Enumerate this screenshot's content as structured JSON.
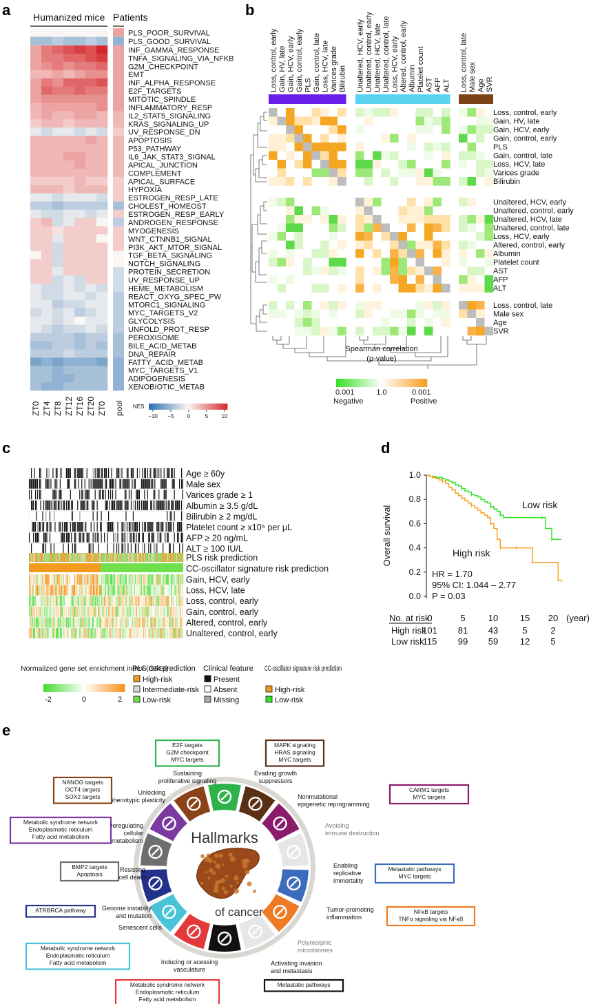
{
  "panels": {
    "a": "a",
    "b": "b",
    "c": "c",
    "d": "d",
    "e": "e"
  },
  "chart_data": [
    {
      "id": "a",
      "type": "heatmap",
      "group_labels": [
        "Humanized mice",
        "Patients"
      ],
      "columns": [
        "ZT0",
        "ZT4",
        "ZT8",
        "ZT12",
        "ZT16",
        "ZT20",
        "ZT0"
      ],
      "patient_column": "pool",
      "top_rows": [
        {
          "name": "PLS_POOR_SURVIVAL",
          "values": [
            0,
            0,
            0,
            0,
            0,
            0,
            0
          ],
          "pool": 4
        },
        {
          "name": "PLS_GOOD_SURVIVAL",
          "values": [
            -4,
            -4,
            -3,
            -4,
            -4,
            -3,
            -4
          ],
          "pool": -5
        }
      ],
      "rows": [
        {
          "name": "INF_GAMMA_RESPONSE",
          "values": [
            4,
            6,
            7,
            8,
            9,
            8,
            10
          ],
          "pool": 4
        },
        {
          "name": "TNFA_SIGNALING_VIA_NFKB",
          "values": [
            4,
            6,
            6,
            7,
            7,
            8,
            9
          ],
          "pool": 4
        },
        {
          "name": "G2M_CHECKPOINT",
          "values": [
            4,
            5,
            6,
            5,
            6,
            6,
            7
          ],
          "pool": 4
        },
        {
          "name": "EMT",
          "values": [
            3,
            3,
            4,
            3,
            4,
            5,
            5
          ],
          "pool": 4
        },
        {
          "name": "INF_ALPHA_RESPONSE",
          "values": [
            4,
            6,
            5,
            7,
            7,
            7,
            8
          ],
          "pool": 4
        },
        {
          "name": "E2F_TARGETS",
          "values": [
            4,
            7,
            6,
            6,
            7,
            6,
            6
          ],
          "pool": 4
        },
        {
          "name": "MITOTIC_SPINDLE",
          "values": [
            4,
            5,
            5,
            5,
            5,
            5,
            5
          ],
          "pool": 4
        },
        {
          "name": "INFLAMMATORY_RESP",
          "values": [
            3,
            4,
            4,
            4,
            4,
            4,
            5
          ],
          "pool": 4
        },
        {
          "name": "IL2_STAT5_SIGNALING",
          "values": [
            3,
            4,
            3,
            3,
            4,
            4,
            3
          ],
          "pool": 3
        },
        {
          "name": "KRAS_SIGNALING_UP",
          "values": [
            2,
            3,
            3,
            2,
            3,
            3,
            3
          ],
          "pool": 3
        },
        {
          "name": "UV_RESPONSE_DN",
          "values": [
            -1,
            -2,
            -1,
            -1,
            -2,
            -1,
            -2
          ],
          "pool": 2
        },
        {
          "name": "APOPTOSIS",
          "values": [
            3,
            3,
            3,
            3,
            3,
            4,
            3
          ],
          "pool": 3
        },
        {
          "name": "P53_PATHWAY",
          "values": [
            3,
            3,
            3,
            3,
            3,
            3,
            3
          ],
          "pool": 3
        },
        {
          "name": "IL6_JAK_STAT3_SIGNAL",
          "values": [
            3,
            3,
            3,
            4,
            4,
            3,
            3
          ],
          "pool": 3
        },
        {
          "name": "APICAL_JUNCTION",
          "values": [
            3,
            3,
            3,
            3,
            4,
            3,
            3
          ],
          "pool": 3
        },
        {
          "name": "COMPLEMENT",
          "values": [
            3,
            3,
            3,
            3,
            3,
            3,
            3
          ],
          "pool": 3
        },
        {
          "name": "APICAL_SURFACE",
          "values": [
            2,
            2,
            2,
            2,
            3,
            2,
            2
          ],
          "pool": 2
        },
        {
          "name": "HYPOXIA",
          "values": [
            3,
            3,
            3,
            2,
            3,
            3,
            3
          ],
          "pool": 2
        },
        {
          "name": "ESTROGEN_RESP_LATE",
          "values": [
            -1,
            -1,
            -2,
            -1,
            -1,
            -1,
            -2
          ],
          "pool": 2
        },
        {
          "name": "CHOLEST_HOMEOST",
          "values": [
            -3,
            -3,
            -4,
            -3,
            -3,
            -3,
            -3
          ],
          "pool": -4
        },
        {
          "name": "ESTROGEN_RESP_EARLY",
          "values": [
            -1,
            -2,
            -2,
            -1,
            -1,
            -2,
            -1
          ],
          "pool": 2
        },
        {
          "name": "ANDROGEN_RESPONSE",
          "values": [
            2,
            3,
            -2,
            -1,
            2,
            2,
            0
          ],
          "pool": -3
        },
        {
          "name": "MYOGENESIS",
          "values": [
            2,
            2,
            1,
            2,
            2,
            2,
            2
          ],
          "pool": 2
        },
        {
          "name": "WNT_CTNNB1_SIGNAL",
          "values": [
            2,
            2,
            -1,
            2,
            2,
            2,
            0
          ],
          "pool": 2
        },
        {
          "name": "PI3K_AKT_MTOR_SIGNAL",
          "values": [
            2,
            2,
            -2,
            2,
            2,
            2,
            2
          ],
          "pool": 2
        },
        {
          "name": "TGF_BETA_SIGNALING",
          "values": [
            0,
            2,
            -2,
            2,
            2,
            2,
            2
          ],
          "pool": 0
        },
        {
          "name": "NOTCH_SIGNALING",
          "values": [
            2,
            2,
            -2,
            2,
            2,
            2,
            2
          ],
          "pool": 0
        },
        {
          "name": "PROTEIN_SECRETION",
          "values": [
            2,
            2,
            -1,
            2,
            2,
            2,
            2
          ],
          "pool": -2
        },
        {
          "name": "UV_RESPONSE_UP",
          "values": [
            2,
            2,
            -2,
            -1,
            -2,
            2,
            2
          ],
          "pool": -2
        },
        {
          "name": "HEME_METABOLISM",
          "values": [
            -1,
            -2,
            -2,
            -1,
            -2,
            -1,
            -2
          ],
          "pool": -2
        },
        {
          "name": "REACT_OXYG_SPEC_PW",
          "values": [
            -1,
            -2,
            -2,
            -1,
            -1,
            -2,
            -1
          ],
          "pool": -3
        },
        {
          "name": "MTORC1_SIGNALING",
          "values": [
            -1,
            -1,
            -3,
            -2,
            -2,
            -1,
            -1
          ],
          "pool": -3
        },
        {
          "name": "MYC_TARGETS_V2",
          "values": [
            -2,
            -1,
            -2,
            -1,
            -3,
            -2,
            -1
          ],
          "pool": -3
        },
        {
          "name": "GLYCOLYSIS",
          "values": [
            -1,
            -1,
            -2,
            -1,
            0,
            -1,
            -1
          ],
          "pool": -3
        },
        {
          "name": "UNFOLD_PROT_RESP",
          "values": [
            -1,
            -2,
            -3,
            -2,
            -2,
            -1,
            -2
          ],
          "pool": -3
        },
        {
          "name": "PEROXISOME",
          "values": [
            -3,
            -3,
            -3,
            -3,
            -4,
            -3,
            -3
          ],
          "pool": -4
        },
        {
          "name": "BILE_ACID_METAB",
          "values": [
            -4,
            -4,
            -3,
            -3,
            -4,
            -3,
            -4
          ],
          "pool": -4
        },
        {
          "name": "DNA_REPAIR",
          "values": [
            -3,
            -3,
            -3,
            -2,
            -3,
            -3,
            -3
          ],
          "pool": -4
        },
        {
          "name": "FATTY_ACID_METAB",
          "values": [
            -6,
            -5,
            -6,
            -5,
            -5,
            -5,
            -6
          ],
          "pool": -5
        },
        {
          "name": "MYC_TARGETS_V1",
          "values": [
            -4,
            -4,
            -5,
            -4,
            -4,
            -4,
            -4
          ],
          "pool": -5
        },
        {
          "name": "ADIPOGENESIS",
          "values": [
            -4,
            -4,
            -5,
            -5,
            -4,
            -4,
            -4
          ],
          "pool": -5
        },
        {
          "name": "XENOBIOTIC_METAB",
          "values": [
            -4,
            -5,
            -5,
            -4,
            -4,
            -4,
            -4
          ],
          "pool": -5
        }
      ],
      "legend": {
        "title": "NES",
        "ticks": [
          "−10",
          "−5",
          "0",
          "5",
          "10"
        ],
        "range": [
          -10,
          10
        ]
      }
    },
    {
      "id": "b",
      "type": "heatmap",
      "title": "Spearman correlation",
      "subtitle": "(p-value)",
      "legend": {
        "low": "0.001",
        "mid": "1.0",
        "high": "0.001",
        "low_label": "Negative",
        "high_label": "Positive"
      },
      "groups": [
        {
          "color": "#6a1de8",
          "labels": [
            "Loss, control, early",
            "Gain, HV, late",
            "Gain, HCV, early",
            "Gain, control, early",
            "PLS",
            "Gain, control, late",
            "Loss, HCV, late",
            "Varices grade",
            "Bilirubin"
          ]
        },
        {
          "color": "#57d3ef",
          "labels": [
            "Unaltered, HCV, early",
            "Unaltered, control, early",
            "Unaltered, HCV, late",
            "Unaltered, control, late",
            "Loss, HCV, early",
            "Altered, control, early",
            "Albumin",
            "Platelet count",
            "AST",
            "AFP",
            "ALT"
          ]
        },
        {
          "color": "#7b4416",
          "labels": [
            "Loss, control, late",
            "Male sex",
            "Age",
            "SVR"
          ]
        }
      ]
    },
    {
      "id": "c",
      "type": "heatmap",
      "binary_rows": [
        "Age ≥ 60y",
        "Male sex",
        "Varices grade ≥ 1",
        "Albumin ≥ 3.5 g/dL",
        "Bilirubin ≥ 2 mg/dL",
        "Platelet count ≥ x10⁵ per μL",
        "AFP ≥ 20 ng/mL",
        "ALT ≥ 100 IU/L"
      ],
      "risk_rows": [
        "PLS risk prediction",
        "CC-oscillator signature risk prediction"
      ],
      "gsei_rows": [
        "Gain, HCV, early",
        "Loss, HCV, late",
        "Loss, control, early",
        "Gain, control, early",
        "Altered, control, early",
        "Unaltered, control, early"
      ],
      "legends": {
        "gsei_title": "Normalized gene set enrichment index (GSEI)",
        "gsei_ticks": [
          "-2",
          "0",
          "2"
        ],
        "pls_title": "PLS risk prediction",
        "pls_items": [
          "High-risk",
          "Intermediate-risk",
          "Low-risk"
        ],
        "clin_title": "Clinical feature",
        "clin_items": [
          "Present",
          "Absent",
          "Missing"
        ],
        "cc_title": "CC-oscillator signature risk prediction",
        "cc_items": [
          "High-risk",
          "Low-risk"
        ]
      }
    },
    {
      "id": "d",
      "type": "line",
      "ylabel": "Overall survival",
      "xlabel": "(year)",
      "xlim": [
        0,
        21
      ],
      "ylim": [
        0,
        1
      ],
      "xticks": [
        "0",
        "5",
        "10",
        "15",
        "20"
      ],
      "yticks": [
        "0.0",
        "0.2",
        "0.4",
        "0.6",
        "0.8",
        "1.0"
      ],
      "series": [
        {
          "name": "Low risk",
          "color": "#33e02a",
          "x": [
            0,
            0.5,
            1,
            1.5,
            2,
            2.5,
            3,
            3.5,
            4,
            4.5,
            5,
            5.5,
            6,
            6.5,
            7,
            7.5,
            8,
            8.5,
            9,
            9.5,
            10,
            10.5,
            11,
            11.5,
            12,
            15,
            18,
            18.5,
            19,
            19.5,
            21
          ],
          "y": [
            1.0,
            0.99,
            0.99,
            0.98,
            0.98,
            0.97,
            0.96,
            0.95,
            0.94,
            0.92,
            0.91,
            0.89,
            0.87,
            0.86,
            0.84,
            0.83,
            0.82,
            0.8,
            0.78,
            0.77,
            0.74,
            0.72,
            0.7,
            0.67,
            0.65,
            0.65,
            0.65,
            0.56,
            0.56,
            0.47,
            0.47
          ]
        },
        {
          "name": "High risk",
          "color": "#f5a020",
          "x": [
            0,
            0.5,
            1,
            1.5,
            2,
            2.5,
            3,
            3.5,
            4,
            4.5,
            5,
            5.5,
            6,
            6.5,
            7,
            7.5,
            8,
            8.5,
            9,
            9.5,
            10,
            10.5,
            11,
            11.5,
            12,
            13,
            14,
            15,
            16,
            16.5,
            20,
            20.5,
            21
          ],
          "y": [
            1.0,
            0.99,
            0.98,
            0.97,
            0.96,
            0.95,
            0.93,
            0.9,
            0.88,
            0.85,
            0.83,
            0.81,
            0.79,
            0.77,
            0.75,
            0.73,
            0.71,
            0.69,
            0.67,
            0.65,
            0.6,
            0.56,
            0.47,
            0.4,
            0.4,
            0.4,
            0.4,
            0.4,
            0.4,
            0.28,
            0.28,
            0.13,
            0.13
          ]
        }
      ],
      "annotations": {
        "hr": "HR = 1.70",
        "ci": "95% CI: 1.044 – 2.77",
        "p": "P = 0.03"
      },
      "at_risk": {
        "header": "No. at risk",
        "rows": [
          {
            "label": "High risk",
            "values": [
              "101",
              "81",
              "43",
              "5",
              "2"
            ]
          },
          {
            "label": "Low risk",
            "values": [
              "115",
              "99",
              "59",
              "12",
              "5"
            ]
          }
        ]
      }
    }
  ],
  "hallmarks": {
    "center_title_1": "Hallmarks",
    "center_title_2": "of cancer",
    "items": [
      {
        "label": "Sustaining\nproliferative signaling",
        "color": "#2fb24c",
        "box": "E2F targets\nG2M checkpoint\nMYC targets"
      },
      {
        "label": "Evading growth\nsuppressors",
        "color": "#5a3015",
        "box": "MAPK signaling\nHRAS signaling\nMYC targets"
      },
      {
        "label": "Nonmutational\nepigenetic reprogramming",
        "color": "#8a1a6a",
        "box": "CARM1 targets\nMYC targets"
      },
      {
        "label": "Avoiding\nimmune destruction",
        "color": "#e6e6e6",
        "box": ""
      },
      {
        "label": "Enabling\nreplicative\nimmortality",
        "color": "#3d6bbd",
        "box": "Metastatic pathways\nMYC targets"
      },
      {
        "label": "Tumor-promoting\ninflammation",
        "color": "#ee7a23",
        "box": "NFκB targets\nTNFα signaling via NFκB"
      },
      {
        "label": "Polymorphic\nmicrobiomes",
        "color": "#e6e6e6",
        "box": ""
      },
      {
        "label": "Activating invasion\nand metastasis",
        "color": "#111111",
        "box": "Metastatic pathways"
      },
      {
        "label": "Inducing or acessing\nvasculature",
        "color": "#e23a3a",
        "box": "Metabolic syndrome network\nEndoplasmatic reticulum\nFatty acid metabolism"
      },
      {
        "label": "Senescent cells",
        "color": "#48c3d8",
        "box": "Metabolic syndrome network\nEndoplasmatic reticulum\nFatty acid metabolism"
      },
      {
        "label": "Genome instabilty\nand mutation",
        "color": "#23318a",
        "box": "ATRBRCA pathway"
      },
      {
        "label": "Resisting\ncell death",
        "color": "#6e6e6e",
        "box": "BMP2 targets\nApoptosis"
      },
      {
        "label": "Deregulating\ncellular\nmetabolism",
        "color": "#7a3aa0",
        "box": "Metabolic syndrome network\nEndoplasmatic reticulum\nFatty acid metabolism"
      },
      {
        "label": "Unlocking\nphenotypic plasticity",
        "color": "#8a4218",
        "box": "NANOG targets\nOCT4 targets\nSOX2 targets"
      }
    ]
  }
}
